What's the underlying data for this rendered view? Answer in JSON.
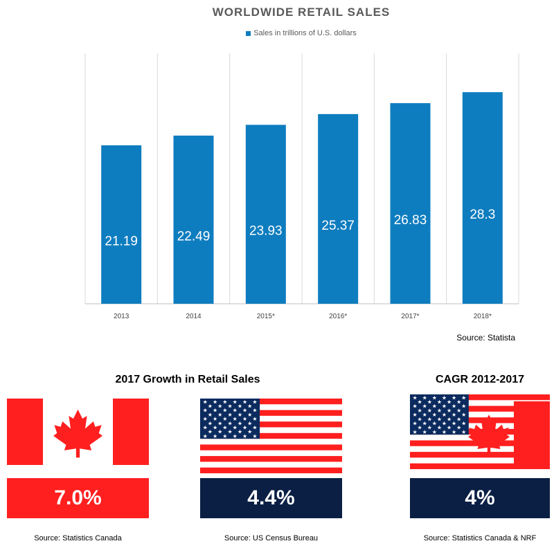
{
  "chart_data": {
    "type": "bar",
    "title": "WORLDWIDE RETAIL SALES",
    "categories": [
      "2013",
      "2014",
      "2015*",
      "2016*",
      "2017*",
      "2018*"
    ],
    "series": [
      {
        "name": "Sales in trillions of U.S. dollars",
        "values": [
          21.19,
          22.49,
          23.93,
          25.37,
          26.83,
          28.3
        ]
      }
    ],
    "data_labels": [
      "21.19",
      "22.49",
      "23.93",
      "25.37",
      "26.83",
      "28.3"
    ],
    "ylim": [
      0,
      33.5
    ],
    "grid": "vertical",
    "legend_placement": "top",
    "bar_color": "#0E7DBF",
    "source": "Source: Statista"
  },
  "growth": {
    "title": "2017 Growth in Retail Sales",
    "items": [
      {
        "country": "canada",
        "value": "7.0%",
        "color": "#FF1F1F",
        "source": "Source: Statistics Canada"
      },
      {
        "country": "usa",
        "value": "4.4%",
        "color": "#0B1F44",
        "source": "Source: US Census Bureau"
      }
    ]
  },
  "cagr": {
    "title": "CAGR 2012-2017",
    "value": "4%",
    "color": "#0B1F44",
    "source": "Source: Statistics Canada & NRF"
  },
  "colors": {
    "flag_red": "#FF1F1F",
    "flag_blue": "#0B2A5E",
    "flag_white": "#FFFFFF"
  }
}
